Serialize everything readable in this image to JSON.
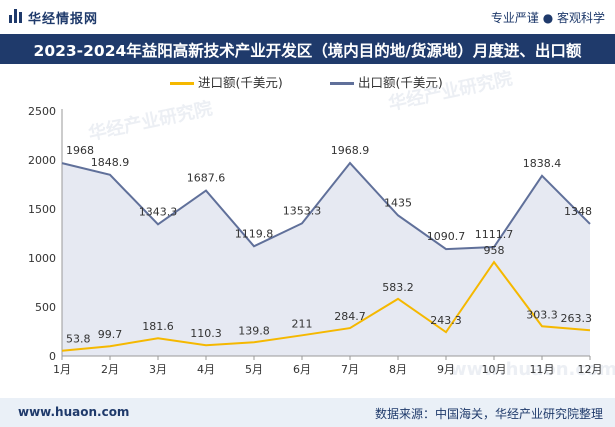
{
  "header": {
    "brand": "华经情报网",
    "slogan": "专业严谨 ● 客观科学"
  },
  "colors": {
    "navy": "#1f3a6b",
    "import_line": "#f5b800",
    "export_line": "#60709a",
    "export_fill": "#dde2ee"
  },
  "watermarks": [
    "华经产业研究院",
    "华经产业研究院",
    "www.huaon.com"
  ],
  "chart_data": {
    "type": "area",
    "title": "2023-2024年益阳高新技术产业开发区（境内目的地/货源地）月度进、出口额",
    "categories": [
      "1月",
      "2月",
      "3月",
      "4月",
      "5月",
      "6月",
      "7月",
      "8月",
      "9月",
      "10月",
      "11月",
      "12月"
    ],
    "series": [
      {
        "name": "进口额(千美元)",
        "values": [
          53.8,
          99.7,
          181.6,
          110.3,
          139.8,
          211,
          284.7,
          583.2,
          243.3,
          958,
          303.3,
          263.3
        ]
      },
      {
        "name": "出口额(千美元)",
        "values": [
          1968,
          1848.9,
          1343.3,
          1687.6,
          1119.8,
          1353.3,
          1968.9,
          1435,
          1090.7,
          1111.7,
          1838.4,
          1348
        ]
      }
    ],
    "ylim": [
      0,
      2500
    ],
    "yticks": [
      "0",
      "500",
      "1000",
      "1500",
      "2000",
      "2500"
    ],
    "grid": false,
    "legend_position": "top"
  },
  "footer": {
    "website": "www.huaon.com",
    "source": "数据来源：中国海关，华经产业研究院整理"
  }
}
